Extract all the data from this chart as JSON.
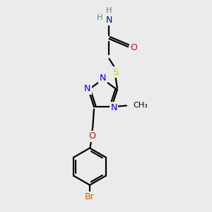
{
  "bg_color": "#ebebeb",
  "atom_colors": {
    "C": "#000000",
    "H": "#4a8a8a",
    "N": "#0000ff",
    "O": "#ff0000",
    "S": "#cccc00",
    "Br": "#cc6600"
  }
}
